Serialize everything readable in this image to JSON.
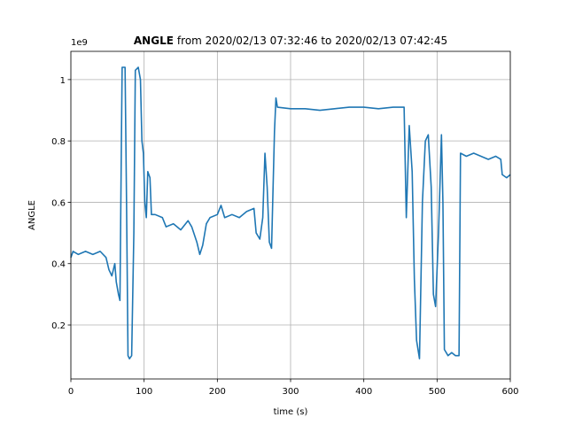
{
  "chart_data": {
    "type": "line",
    "title": {
      "bold": "ANGLE",
      "rest": "from 2020/02/13 07:32:46 to 2020/02/13 07:42:45"
    },
    "x_label": "time (s)",
    "y_label": "ANGLE",
    "y_offset_label": "1e9",
    "x": [
      0,
      3,
      10,
      20,
      30,
      40,
      48,
      52,
      56,
      60,
      62,
      65,
      67,
      69,
      70,
      74,
      76,
      78,
      80,
      83,
      86,
      88,
      92,
      95,
      97,
      99,
      101,
      103,
      105,
      108,
      110,
      115,
      125,
      130,
      140,
      150,
      160,
      165,
      172,
      176,
      180,
      185,
      190,
      200,
      205,
      210,
      220,
      230,
      240,
      250,
      253,
      258,
      262,
      265,
      268,
      271,
      274,
      278,
      280,
      282,
      300,
      320,
      340,
      360,
      380,
      400,
      420,
      440,
      455,
      458,
      462,
      466,
      469,
      472,
      476,
      480,
      484,
      488,
      492,
      495,
      498,
      502,
      506,
      508,
      510,
      515,
      520,
      525,
      530,
      532,
      540,
      550,
      560,
      570,
      580,
      587,
      589,
      595,
      600
    ],
    "series": [
      {
        "name": "ANGLE",
        "color": "#1f77b4",
        "values": [
          0.42,
          0.44,
          0.43,
          0.44,
          0.43,
          0.44,
          0.42,
          0.38,
          0.36,
          0.4,
          0.34,
          0.3,
          0.28,
          0.8,
          1.04,
          1.04,
          0.6,
          0.1,
          0.09,
          0.1,
          0.5,
          1.03,
          1.04,
          1.0,
          0.8,
          0.76,
          0.6,
          0.55,
          0.7,
          0.68,
          0.56,
          0.56,
          0.55,
          0.52,
          0.53,
          0.51,
          0.54,
          0.52,
          0.47,
          0.43,
          0.46,
          0.53,
          0.55,
          0.56,
          0.59,
          0.55,
          0.56,
          0.55,
          0.57,
          0.58,
          0.5,
          0.48,
          0.55,
          0.76,
          0.65,
          0.47,
          0.45,
          0.83,
          0.94,
          0.91,
          0.905,
          0.905,
          0.9,
          0.905,
          0.91,
          0.91,
          0.905,
          0.91,
          0.91,
          0.55,
          0.85,
          0.7,
          0.35,
          0.15,
          0.09,
          0.6,
          0.8,
          0.82,
          0.65,
          0.3,
          0.26,
          0.5,
          0.82,
          0.6,
          0.12,
          0.1,
          0.11,
          0.1,
          0.1,
          0.76,
          0.75,
          0.76,
          0.75,
          0.74,
          0.75,
          0.74,
          0.69,
          0.68,
          0.69
        ]
      }
    ],
    "xlim": [
      0,
      600
    ],
    "xticks": [
      0,
      100,
      200,
      300,
      400,
      500,
      600
    ],
    "ylim": [
      0.024,
      1.092
    ],
    "yticks": [
      0.2,
      0.4,
      0.6,
      0.8,
      1.0
    ],
    "grid": true
  }
}
